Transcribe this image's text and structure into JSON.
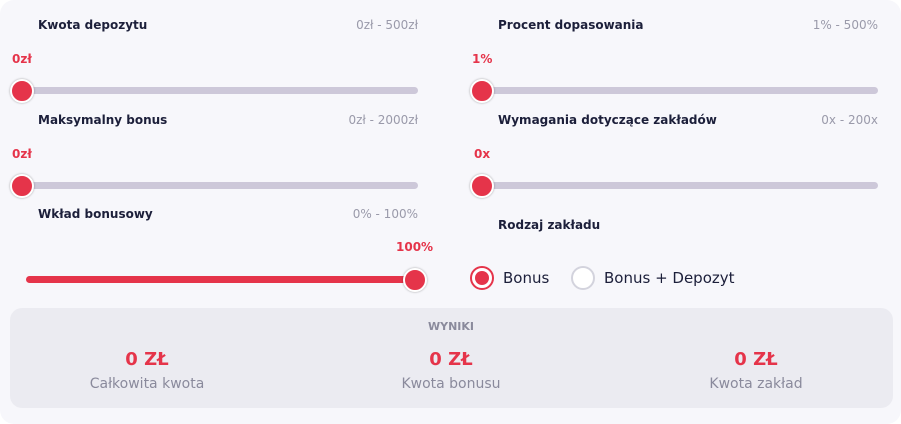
{
  "sliders": [
    {
      "label": "Kwota depozytu",
      "range": "0zł - 500zł",
      "value": "0zł"
    },
    {
      "label": "Procent dopasowania",
      "range": "1% - 500%",
      "value": "1%"
    },
    {
      "label": "Maksymalny bonus",
      "range": "0zł - 2000zł",
      "value": "0zł"
    },
    {
      "label": "Wymagania dotyczące zakładów",
      "range": "0x - 200x",
      "value": "0x"
    },
    {
      "label": "Wkład bonusowy",
      "range": "0% - 100%",
      "value": "100%"
    }
  ],
  "bet_type": {
    "label": "Rodzaj zakładu",
    "options": [
      "Bonus",
      "Bonus + Depozyt"
    ]
  },
  "results": {
    "title": "WYNIKI",
    "items": [
      {
        "value": "0 ZŁ",
        "label": "Całkowita kwota"
      },
      {
        "value": "0 ZŁ",
        "label": "Kwota bonusu"
      },
      {
        "value": "0 ZŁ",
        "label": "Kwota zakład"
      }
    ]
  }
}
